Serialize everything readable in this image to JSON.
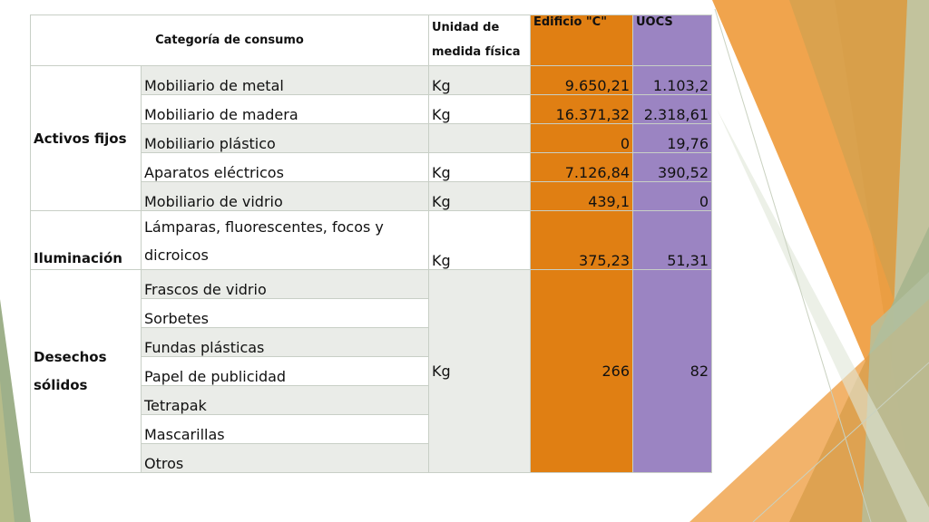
{
  "table": {
    "headers": {
      "category": "Categoría de consumo",
      "unit_line1": "Unidad de",
      "unit_line2": "medida física",
      "edificio": "Edificio \"C\"",
      "uocs": "UOCS"
    },
    "groups": {
      "activos": {
        "label": "Activos fijos",
        "rows": [
          {
            "item": "Mobiliario de metal",
            "unit": "Kg",
            "edificio": "9.650,21",
            "uocs": "1.103,2"
          },
          {
            "item": "Mobiliario de madera",
            "unit": "Kg",
            "edificio": "16.371,32",
            "uocs": "2.318,61"
          },
          {
            "item": "Mobiliario plástico",
            "unit": "",
            "edificio": "0",
            "uocs": "19,76"
          },
          {
            "item": "Aparatos eléctricos",
            "unit": "Kg",
            "edificio": "7.126,84",
            "uocs": "390,52"
          },
          {
            "item": "Mobiliario de vidrio",
            "unit": "Kg",
            "edificio": "439,1",
            "uocs": "0"
          }
        ]
      },
      "iluminacion": {
        "label": "Iluminación",
        "item_line1": "Lámparas, fluorescentes, focos y",
        "item_line2": "dicroicos",
        "unit": "Kg",
        "edificio": "375,23",
        "uocs": "51,31"
      },
      "desechos": {
        "label_line1": "Desechos",
        "label_line2": "sólidos",
        "items": [
          "Frascos de vidrio",
          "Sorbetes",
          "Fundas plásticas",
          "Papel de publicidad",
          "Tetrapak",
          "Mascarillas",
          "Otros"
        ],
        "unit": "Kg",
        "edificio": "266",
        "uocs": "82"
      }
    }
  },
  "colors": {
    "edificio_column": "#e07f13",
    "uocs_column": "#9b84c2",
    "row_shade": "#eaece8",
    "deco_orange": "#ee9a3a",
    "deco_olive": "#b6bc8a",
    "deco_green": "#9eb08a"
  }
}
